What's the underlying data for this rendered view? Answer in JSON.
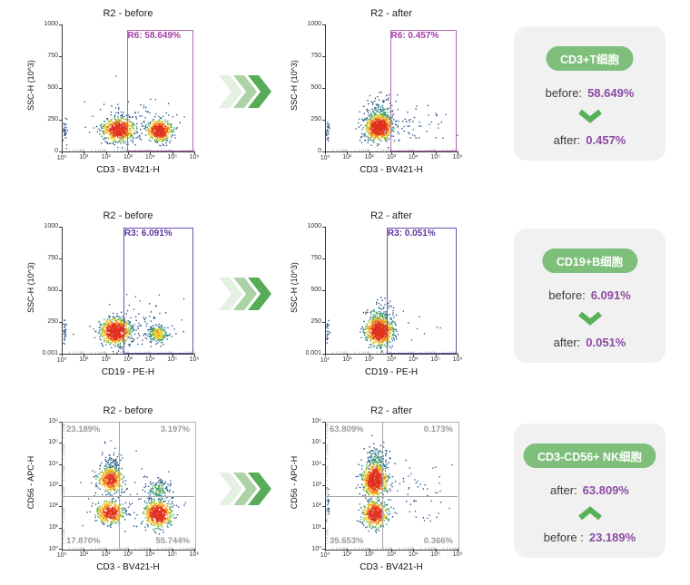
{
  "figure_title": "Flow cytometry before/after comparison",
  "colors": {
    "card_bg": "#f1f1f2",
    "pill_bg": "#7dbf7b",
    "pill_text": "#ffffff",
    "value_purple": "#8b4ba1",
    "trend_green": "#58b158",
    "arrow_steps": [
      "#e4f0e1",
      "#abd3a5",
      "#57ac57"
    ],
    "gate_row1_border": "#b168b4",
    "gate_row1_text": "#a23fa5",
    "gate_row2_border": "#6e52aa",
    "gate_row2_text": "#5b35a0",
    "quadrant_gray": "#9a9a9a",
    "density_palette": {
      "blue_dark": "#1d3f70",
      "blue": "#2b5c94",
      "teal": "#2e8d93",
      "green": "#62b243",
      "yellow": "#f4d01f",
      "orange": "#f6881f",
      "red": "#e0301e"
    }
  },
  "chart_data": [
    {
      "type": "scatter",
      "title": "R2 - before",
      "xlabel": "CD3 - BV421-H",
      "ylabel": "SSC-H (10^3)",
      "x_scale": "log",
      "x_range": [
        1,
        1000000
      ],
      "y_scale": "linear",
      "y_range": [
        0,
        1000
      ],
      "x_ticks": [
        "10⁰",
        "10¹",
        "10²",
        "10³",
        "10⁴",
        "10⁵",
        "10⁶"
      ],
      "y_ticks": [
        "0",
        "250",
        "500",
        "750",
        "1000"
      ],
      "gate": {
        "type": "rect",
        "name": "R6",
        "label": "R6: 58.649%",
        "percent": 58.649,
        "x0": 0.49,
        "x1": 0.995,
        "y0": 0.0,
        "y1": 0.96,
        "border": "#b168b4",
        "text": "#a23fa5"
      },
      "clusters": [
        {
          "cx": 0.42,
          "cy": 0.17,
          "sx": 0.055,
          "sy": 0.045,
          "n": 650,
          "heat": 1
        },
        {
          "cx": 0.73,
          "cy": 0.165,
          "sx": 0.045,
          "sy": 0.04,
          "n": 520,
          "heat": 1
        },
        {
          "cx": 0.56,
          "cy": 0.24,
          "sx": 0.17,
          "sy": 0.09,
          "n": 120,
          "heat": 0.12
        },
        {
          "cx": 0.015,
          "cy": 0.17,
          "sx": 0.008,
          "sy": 0.05,
          "n": 30,
          "heat": 0.15
        }
      ]
    },
    {
      "type": "scatter",
      "title": "R2 - after",
      "xlabel": "CD3 - BV421-H",
      "ylabel": "SSC-H (10^3)",
      "x_scale": "log",
      "x_range": [
        1,
        1000000
      ],
      "y_scale": "linear",
      "y_range": [
        0,
        1000
      ],
      "x_ticks": [
        "10⁰",
        "10¹",
        "10²",
        "10³",
        "10⁴",
        "10⁵",
        "10⁶"
      ],
      "y_ticks": [
        "0",
        "250",
        "500",
        "750",
        "1000"
      ],
      "gate": {
        "type": "rect",
        "name": "R6",
        "label": "R6: 0.457%",
        "percent": 0.457,
        "x0": 0.49,
        "x1": 0.995,
        "y0": 0.0,
        "y1": 0.96,
        "border": "#b168b4",
        "text": "#a23fa5"
      },
      "clusters": [
        {
          "cx": 0.4,
          "cy": 0.19,
          "sx": 0.05,
          "sy": 0.05,
          "n": 850,
          "heat": 1
        },
        {
          "cx": 0.41,
          "cy": 0.3,
          "sx": 0.06,
          "sy": 0.07,
          "n": 160,
          "heat": 0.3
        },
        {
          "cx": 0.68,
          "cy": 0.2,
          "sx": 0.14,
          "sy": 0.07,
          "n": 55,
          "heat": 0.1
        },
        {
          "cx": 0.015,
          "cy": 0.17,
          "sx": 0.008,
          "sy": 0.05,
          "n": 25,
          "heat": 0.12
        }
      ]
    },
    {
      "type": "scatter",
      "title": "R2 - before",
      "xlabel": "CD19 - PE-H",
      "ylabel": "SSC-H (10^3)",
      "x_scale": "log",
      "x_range": [
        1,
        1000000
      ],
      "y_scale": "linear",
      "y_range": [
        0.001,
        1000
      ],
      "x_ticks": [
        "10⁰",
        "10¹",
        "10²",
        "10³",
        "10⁴",
        "10⁵",
        "10⁶"
      ],
      "y_ticks": [
        "0.001",
        "250",
        "500",
        "750",
        "1000"
      ],
      "gate": {
        "type": "rect",
        "name": "R3",
        "label": "R3: 6.091%",
        "percent": 6.091,
        "x0": 0.465,
        "x1": 0.995,
        "y0": 0.0,
        "y1": 0.99,
        "border": "#6e52aa",
        "text": "#5b35a0"
      },
      "clusters": [
        {
          "cx": 0.4,
          "cy": 0.175,
          "sx": 0.055,
          "sy": 0.05,
          "n": 800,
          "heat": 1
        },
        {
          "cx": 0.72,
          "cy": 0.155,
          "sx": 0.038,
          "sy": 0.035,
          "n": 230,
          "heat": 0.5
        },
        {
          "cx": 0.55,
          "cy": 0.23,
          "sx": 0.16,
          "sy": 0.09,
          "n": 110,
          "heat": 0.12
        },
        {
          "cx": 0.015,
          "cy": 0.16,
          "sx": 0.008,
          "sy": 0.05,
          "n": 25,
          "heat": 0.12
        }
      ]
    },
    {
      "type": "scatter",
      "title": "R2 - after",
      "xlabel": "CD19 - PE-H",
      "ylabel": "SSC-H (10^3)",
      "x_scale": "log",
      "x_range": [
        1,
        1000000
      ],
      "y_scale": "linear",
      "y_range": [
        0.001,
        1000
      ],
      "x_ticks": [
        "10⁰",
        "10¹",
        "10²",
        "10³",
        "10⁴",
        "10⁵",
        "10⁶"
      ],
      "y_ticks": [
        "0.001",
        "250",
        "500",
        "750",
        "1000"
      ],
      "gate": {
        "type": "rect",
        "name": "R3",
        "label": "R3: 0.051%",
        "percent": 0.051,
        "x0": 0.465,
        "x1": 0.995,
        "y0": 0.0,
        "y1": 0.99,
        "border": "#6e52aa",
        "text": "#5b35a0"
      },
      "clusters": [
        {
          "cx": 0.4,
          "cy": 0.18,
          "sx": 0.05,
          "sy": 0.055,
          "n": 850,
          "heat": 1
        },
        {
          "cx": 0.41,
          "cy": 0.29,
          "sx": 0.06,
          "sy": 0.06,
          "n": 140,
          "heat": 0.3
        },
        {
          "cx": 0.66,
          "cy": 0.19,
          "sx": 0.12,
          "sy": 0.06,
          "n": 14,
          "heat": 0.06
        },
        {
          "cx": 0.015,
          "cy": 0.16,
          "sx": 0.008,
          "sy": 0.05,
          "n": 22,
          "heat": 0.12
        }
      ]
    },
    {
      "type": "scatter",
      "title": "R2 - before",
      "xlabel": "CD3 - BV421-H",
      "ylabel": "CD56 - APC-H",
      "x_scale": "log",
      "x_range": [
        1,
        1000000
      ],
      "y_scale": "log",
      "y_range": [
        1,
        1000000
      ],
      "x_ticks": [
        "10⁰",
        "10¹",
        "10²",
        "10³",
        "10⁴",
        "10⁵",
        "10⁶"
      ],
      "y_ticks": [
        "10⁰",
        "10¹",
        "10²",
        "10³",
        "10⁴",
        "10⁵",
        "10⁶"
      ],
      "gate": {
        "type": "quadrant",
        "vx": 0.434,
        "hy": 0.413,
        "labels": {
          "tl": "23.189%",
          "tr": "3.197%",
          "bl": "17.870%",
          "br": "55.744%"
        },
        "percents": {
          "tl": 23.189,
          "tr": 3.197,
          "bl": 17.87,
          "br": 55.744
        }
      },
      "clusters": [
        {
          "cx": 0.36,
          "cy": 0.55,
          "sx": 0.045,
          "sy": 0.05,
          "n": 430,
          "heat": 0.85
        },
        {
          "cx": 0.36,
          "cy": 0.29,
          "sx": 0.05,
          "sy": 0.045,
          "n": 480,
          "heat": 0.9
        },
        {
          "cx": 0.72,
          "cy": 0.28,
          "sx": 0.05,
          "sy": 0.05,
          "n": 650,
          "heat": 1
        },
        {
          "cx": 0.72,
          "cy": 0.47,
          "sx": 0.05,
          "sy": 0.04,
          "n": 150,
          "heat": 0.35
        },
        {
          "cx": 0.37,
          "cy": 0.68,
          "sx": 0.035,
          "sy": 0.07,
          "n": 80,
          "heat": 0.2
        },
        {
          "cx": 0.55,
          "cy": 0.4,
          "sx": 0.2,
          "sy": 0.14,
          "n": 70,
          "heat": 0.06
        }
      ]
    },
    {
      "type": "scatter",
      "title": "R2 - after",
      "xlabel": "CD3 - BV421-H",
      "ylabel": "CD56 - APC-H",
      "x_scale": "log",
      "x_range": [
        1,
        1000000
      ],
      "y_scale": "log",
      "y_range": [
        1,
        1000000
      ],
      "x_ticks": [
        "10⁰",
        "10¹",
        "10²",
        "10³",
        "10⁴",
        "10⁵",
        "10⁶"
      ],
      "y_ticks": [
        "10⁰",
        "10¹",
        "10²",
        "10³",
        "10⁴",
        "10⁵",
        "10⁶"
      ],
      "gate": {
        "type": "quadrant",
        "vx": 0.434,
        "hy": 0.413,
        "labels": {
          "tl": "63.809%",
          "tr": "0.173%",
          "bl": "35.653%",
          "br": "0.366%"
        },
        "percents": {
          "tl": 63.809,
          "tr": 0.173,
          "bl": 35.653,
          "br": 0.366
        }
      },
      "clusters": [
        {
          "cx": 0.37,
          "cy": 0.55,
          "sx": 0.045,
          "sy": 0.065,
          "n": 850,
          "heat": 1
        },
        {
          "cx": 0.38,
          "cy": 0.71,
          "sx": 0.04,
          "sy": 0.06,
          "n": 140,
          "heat": 0.3
        },
        {
          "cx": 0.37,
          "cy": 0.28,
          "sx": 0.045,
          "sy": 0.05,
          "n": 560,
          "heat": 0.95
        },
        {
          "cx": 0.7,
          "cy": 0.4,
          "sx": 0.13,
          "sy": 0.13,
          "n": 55,
          "heat": 0.06
        },
        {
          "cx": 0.015,
          "cy": 0.35,
          "sx": 0.008,
          "sy": 0.1,
          "n": 20,
          "heat": 0.1
        }
      ]
    }
  ],
  "summary": [
    {
      "tag": "CD3+T细胞",
      "lines": [
        {
          "label": "before:",
          "value": "58.649%"
        },
        {
          "label": "after:",
          "value": "0.457%"
        }
      ],
      "trend": "down"
    },
    {
      "tag": "CD19+B细胞",
      "lines": [
        {
          "label": "before:",
          "value": "6.091%"
        },
        {
          "label": "after:",
          "value": "0.051%"
        }
      ],
      "trend": "down"
    },
    {
      "tag": "CD3-CD56+ NK细胞",
      "lines": [
        {
          "label": "after:",
          "value": "63.809%"
        },
        {
          "label": "before :",
          "value": "23.189%"
        }
      ],
      "trend": "up"
    }
  ]
}
